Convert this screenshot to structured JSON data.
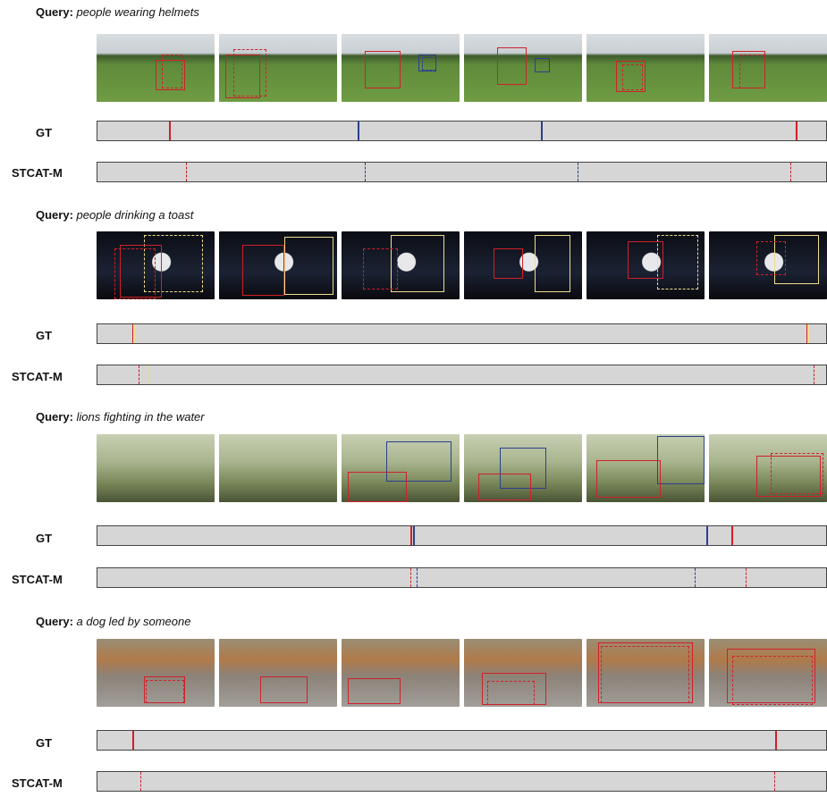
{
  "colors": {
    "red": "#d0202a",
    "blue": "#2a3f8f",
    "yellow": "#f0dc8c",
    "track": "#d6d6d6"
  },
  "rows": {
    "gt": "GT",
    "pred": "STCAT-M"
  },
  "examples": [
    {
      "query_label": "Query:",
      "query_text": "people wearing helmets",
      "scene": "field",
      "gt_marks": [
        {
          "pos": 0.098,
          "color": "red"
        },
        {
          "pos": 0.357,
          "color": "blue"
        },
        {
          "pos": 0.608,
          "color": "blue"
        },
        {
          "pos": 0.958,
          "color": "red"
        }
      ],
      "pred_marks": [
        {
          "pos": 0.122,
          "color": "red"
        },
        {
          "pos": 0.367,
          "color": "blue"
        },
        {
          "pos": 0.659,
          "color": "blue"
        },
        {
          "pos": 0.951,
          "color": "red"
        }
      ]
    },
    {
      "query_label": "Query:",
      "query_text": "people drinking a toast",
      "scene": "night",
      "gt_marks": [
        {
          "pos": 0.048,
          "color": "red"
        },
        {
          "pos": 0.049,
          "color": "yellow"
        },
        {
          "pos": 0.973,
          "color": "red"
        },
        {
          "pos": 0.974,
          "color": "yellow"
        }
      ],
      "pred_marks": [
        {
          "pos": 0.056,
          "color": "red"
        },
        {
          "pos": 0.07,
          "color": "yellow"
        },
        {
          "pos": 0.983,
          "color": "red"
        },
        {
          "pos": 0.985,
          "color": "yellow"
        }
      ]
    },
    {
      "query_label": "Query:",
      "query_text": "lions fighting in the water",
      "scene": "grass",
      "gt_marks": [
        {
          "pos": 0.43,
          "color": "red"
        },
        {
          "pos": 0.433,
          "color": "blue"
        },
        {
          "pos": 0.836,
          "color": "blue"
        },
        {
          "pos": 0.87,
          "color": "red"
        }
      ],
      "pred_marks": [
        {
          "pos": 0.429,
          "color": "red"
        },
        {
          "pos": 0.438,
          "color": "blue"
        },
        {
          "pos": 0.82,
          "color": "blue"
        },
        {
          "pos": 0.889,
          "color": "red"
        }
      ]
    },
    {
      "query_label": "Query:",
      "query_text": "a dog led by someone",
      "scene": "street",
      "gt_marks": [
        {
          "pos": 0.048,
          "color": "red"
        },
        {
          "pos": 0.93,
          "color": "red"
        }
      ],
      "pred_marks": [
        {
          "pos": 0.059,
          "color": "red"
        },
        {
          "pos": 0.929,
          "color": "red"
        }
      ]
    }
  ]
}
